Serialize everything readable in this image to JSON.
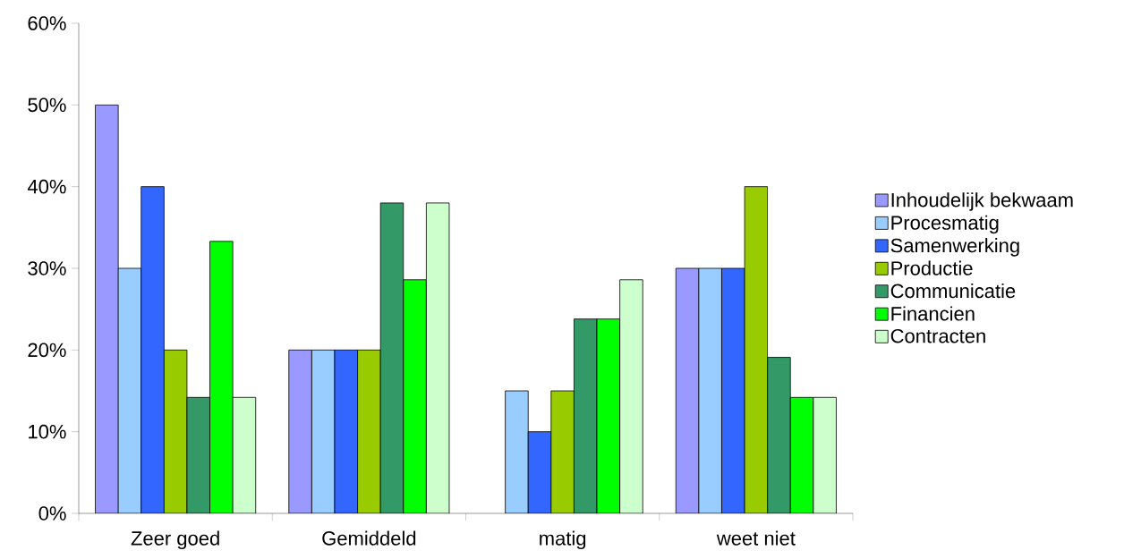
{
  "chart_data": {
    "type": "bar",
    "categories": [
      "Zeer goed",
      "Gemiddeld",
      "matig",
      "weet niet"
    ],
    "series": [
      {
        "name": "Inhoudelijk bekwaam",
        "color": "#9999ff",
        "values": [
          50,
          20,
          null,
          30
        ]
      },
      {
        "name": "Procesmatig",
        "color": "#99ccff",
        "values": [
          30,
          20,
          15,
          30
        ]
      },
      {
        "name": "Samenwerking",
        "color": "#3366ff",
        "values": [
          40,
          20,
          10,
          30
        ]
      },
      {
        "name": "Productie",
        "color": "#99cc00",
        "values": [
          20,
          20,
          15,
          40
        ]
      },
      {
        "name": "Communicatie",
        "color": "#339966",
        "values": [
          14.2,
          38,
          23.8,
          19.1
        ]
      },
      {
        "name": "Financien",
        "color": "#00ff00",
        "values": [
          33.3,
          28.6,
          23.8,
          14.2
        ]
      },
      {
        "name": "Contracten",
        "color": "#ccffcc",
        "values": [
          14.2,
          38,
          28.6,
          14.2
        ]
      }
    ],
    "ylim": [
      0,
      60
    ],
    "yticks": [
      {
        "value": 0,
        "label": "0%"
      },
      {
        "value": 10,
        "label": "10%"
      },
      {
        "value": 20,
        "label": "20%"
      },
      {
        "value": 30,
        "label": "30%"
      },
      {
        "value": 40,
        "label": "40%"
      },
      {
        "value": 50,
        "label": "50%"
      },
      {
        "value": 60,
        "label": "60%"
      }
    ],
    "legend": "right"
  }
}
